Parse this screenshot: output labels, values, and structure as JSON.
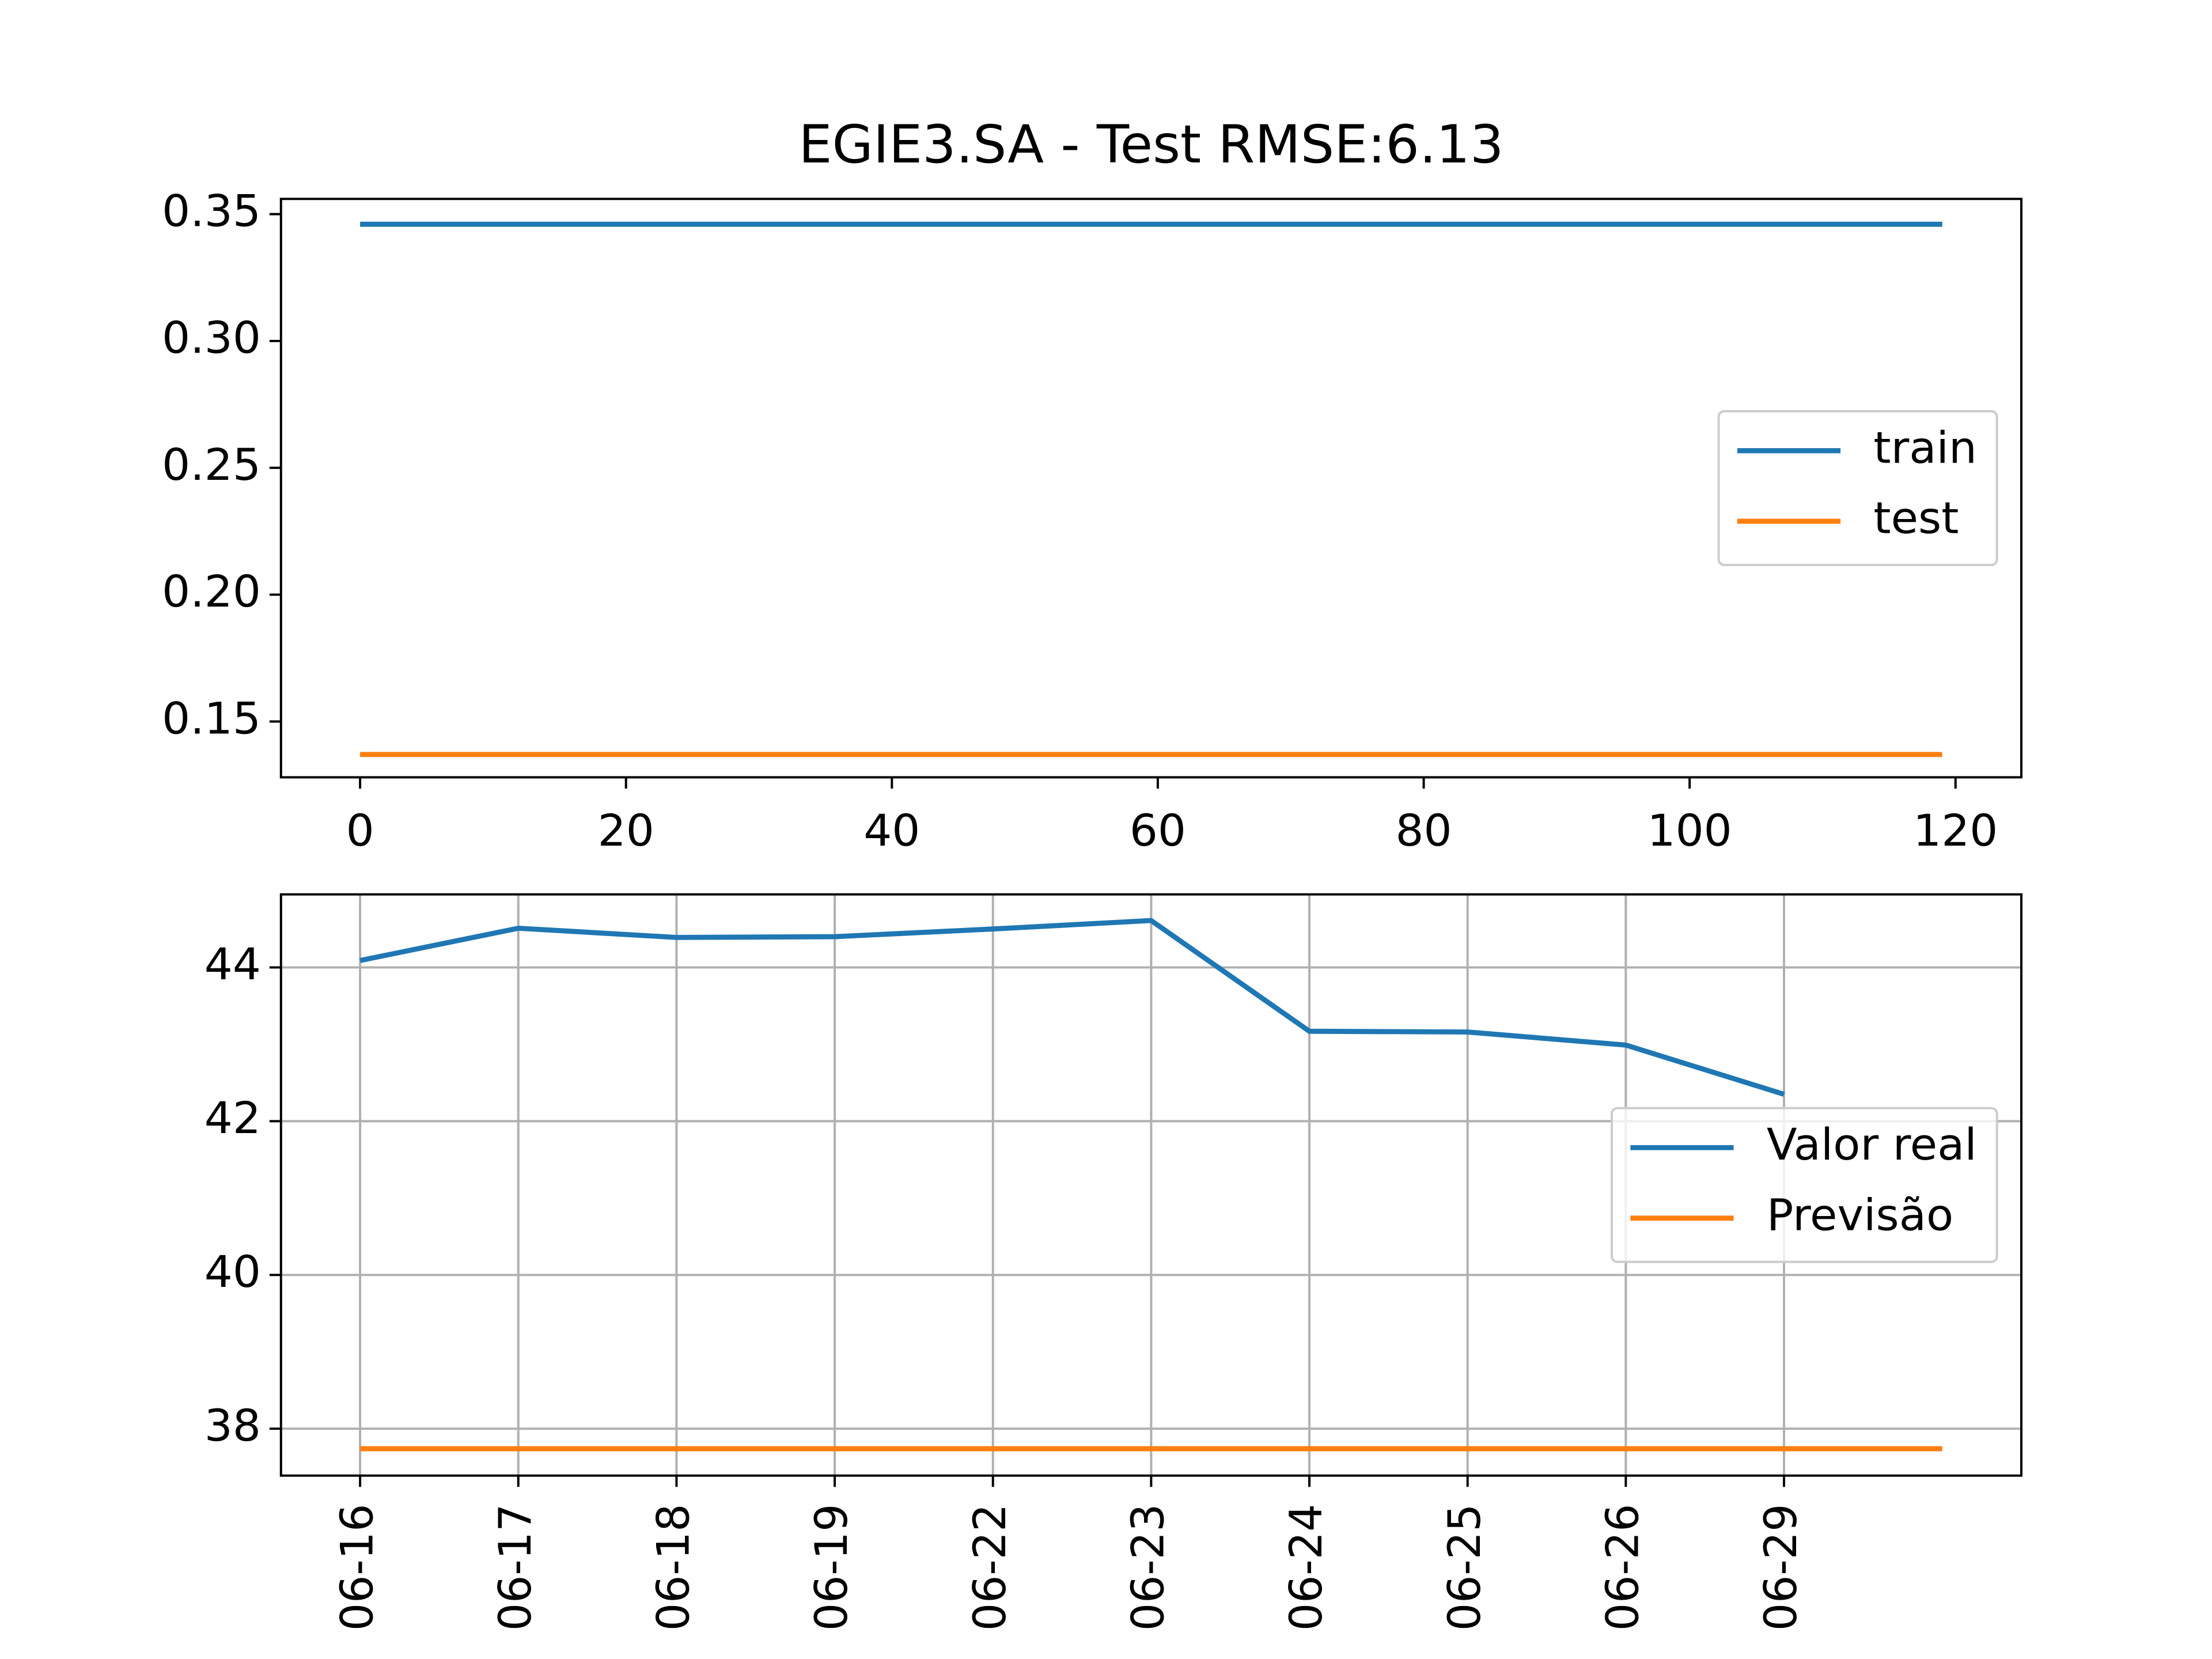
{
  "chart_data": [
    {
      "type": "line",
      "title": "EGIE3.SA - Test RMSE:6.13",
      "x": [
        0,
        119
      ],
      "series": [
        {
          "name": "train",
          "color": "#1f77b4",
          "values": [
            0.346,
            0.346
          ]
        },
        {
          "name": "test",
          "color": "#ff7f0e",
          "values": [
            0.137,
            0.137
          ]
        }
      ],
      "xlim": [
        -5.95,
        124.95
      ],
      "xticks": [
        0,
        20,
        40,
        60,
        80,
        100,
        120
      ],
      "ylim": [
        0.128,
        0.356
      ],
      "yticks": [
        {
          "value": 0.15,
          "label": "0.15"
        },
        {
          "value": 0.2,
          "label": "0.20"
        },
        {
          "value": 0.25,
          "label": "0.25"
        },
        {
          "value": 0.3,
          "label": "0.30"
        },
        {
          "value": 0.35,
          "label": "0.35"
        }
      ],
      "grid": false,
      "legend": "center right"
    },
    {
      "type": "line",
      "categories": [
        "06-16",
        "06-17",
        "06-18",
        "06-19",
        "06-22",
        "06-23",
        "06-24",
        "06-25",
        "06-26",
        "06-29",
        null
      ],
      "series": [
        {
          "name": "Valor real",
          "color": "#1f77b4",
          "values": [
            44.09,
            44.51,
            44.39,
            44.4,
            44.5,
            44.61,
            43.17,
            43.16,
            42.99,
            42.35,
            null
          ]
        },
        {
          "name": "Previsão",
          "color": "#ff7f0e",
          "values": [
            37.74,
            37.74,
            37.74,
            37.74,
            37.74,
            37.74,
            37.74,
            37.74,
            37.74,
            37.74,
            37.74
          ]
        }
      ],
      "ylim": [
        37.39,
        44.95
      ],
      "yticks": [
        38,
        40,
        42,
        44
      ],
      "grid": true,
      "legend": "center right"
    }
  ]
}
